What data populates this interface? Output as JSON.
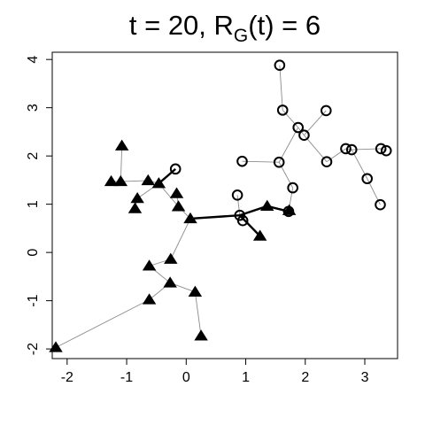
{
  "chart_data": {
    "type": "scatter",
    "title": {
      "prefix": "t = 20, R",
      "subscript": "G",
      "suffix": "(t) = 6"
    },
    "xlabel": "",
    "ylabel": "",
    "xlim": [
      -2.25,
      3.55
    ],
    "ylim": [
      -2.2,
      4.15
    ],
    "x_ticks": [
      -2,
      -1,
      0,
      1,
      2,
      3
    ],
    "y_ticks": [
      -2,
      -1,
      0,
      1,
      2,
      3,
      4
    ],
    "grid": false,
    "legend": null,
    "colors": {
      "edge_thin": "#8c8c8c",
      "edge_bold": "#000000",
      "points": "#000000"
    },
    "nodes": [
      {
        "id": "c1",
        "shape": "circle",
        "x": 1.57,
        "y": 3.88
      },
      {
        "id": "c2",
        "shape": "circle",
        "x": 1.62,
        "y": 2.95
      },
      {
        "id": "c3",
        "shape": "circle",
        "x": 2.35,
        "y": 2.94
      },
      {
        "id": "c4",
        "shape": "circle",
        "x": 1.88,
        "y": 2.59
      },
      {
        "id": "c5",
        "shape": "circle",
        "x": 1.98,
        "y": 2.43
      },
      {
        "id": "c6",
        "shape": "circle",
        "x": 2.68,
        "y": 2.15
      },
      {
        "id": "c7",
        "shape": "circle",
        "x": 2.78,
        "y": 2.13
      },
      {
        "id": "c8",
        "shape": "circle",
        "x": 3.27,
        "y": 2.15
      },
      {
        "id": "c9",
        "shape": "circle",
        "x": 3.36,
        "y": 2.11
      },
      {
        "id": "c10",
        "shape": "circle",
        "x": 0.94,
        "y": 1.89
      },
      {
        "id": "c11",
        "shape": "circle",
        "x": 1.56,
        "y": 1.87
      },
      {
        "id": "c12",
        "shape": "circle",
        "x": 2.36,
        "y": 1.88
      },
      {
        "id": "c13",
        "shape": "circle",
        "x": -0.18,
        "y": 1.73
      },
      {
        "id": "c14",
        "shape": "circle",
        "x": 3.04,
        "y": 1.53
      },
      {
        "id": "c15",
        "shape": "circle",
        "x": 1.79,
        "y": 1.34
      },
      {
        "id": "c16",
        "shape": "circle",
        "x": 0.86,
        "y": 1.19
      },
      {
        "id": "c17",
        "shape": "circle",
        "x": 3.26,
        "y": 0.99
      },
      {
        "id": "c18",
        "shape": "circle",
        "x": 1.72,
        "y": 0.85
      },
      {
        "id": "c19",
        "shape": "circle",
        "x": 0.9,
        "y": 0.77
      },
      {
        "id": "c20",
        "shape": "circle",
        "x": 0.95,
        "y": 0.66
      },
      {
        "id": "t1",
        "shape": "triangle",
        "x": -1.08,
        "y": 2.21
      },
      {
        "id": "t2",
        "shape": "triangle",
        "x": -1.26,
        "y": 1.47
      },
      {
        "id": "t3",
        "shape": "triangle",
        "x": -1.1,
        "y": 1.47
      },
      {
        "id": "t4",
        "shape": "triangle",
        "x": -0.64,
        "y": 1.49
      },
      {
        "id": "t5",
        "shape": "triangle",
        "x": -0.46,
        "y": 1.43
      },
      {
        "id": "t6",
        "shape": "triangle",
        "x": -0.16,
        "y": 1.22
      },
      {
        "id": "t7",
        "shape": "triangle",
        "x": -0.82,
        "y": 1.12
      },
      {
        "id": "t8",
        "shape": "triangle",
        "x": -0.86,
        "y": 0.91
      },
      {
        "id": "t9",
        "shape": "triangle",
        "x": -0.13,
        "y": 0.95
      },
      {
        "id": "t10",
        "shape": "triangle",
        "x": 0.07,
        "y": 0.7
      },
      {
        "id": "t11",
        "shape": "triangle",
        "x": 1.36,
        "y": 0.96
      },
      {
        "id": "t12",
        "shape": "triangle",
        "x": 1.73,
        "y": 0.87
      },
      {
        "id": "t13",
        "shape": "triangle",
        "x": 1.24,
        "y": 0.34
      },
      {
        "id": "t14",
        "shape": "triangle",
        "x": -0.26,
        "y": -0.14
      },
      {
        "id": "t15",
        "shape": "triangle",
        "x": -0.62,
        "y": -0.28
      },
      {
        "id": "t16",
        "shape": "triangle",
        "x": -0.27,
        "y": -0.63
      },
      {
        "id": "t17",
        "shape": "triangle",
        "x": 0.15,
        "y": -0.82
      },
      {
        "id": "t18",
        "shape": "triangle",
        "x": -0.62,
        "y": -0.98
      },
      {
        "id": "t19",
        "shape": "triangle",
        "x": 0.25,
        "y": -1.73
      },
      {
        "id": "t20",
        "shape": "triangle",
        "x": -2.19,
        "y": -1.97
      }
    ],
    "edges_thin": [
      [
        "c1",
        "c2"
      ],
      [
        "c2",
        "c4"
      ],
      [
        "c4",
        "c5"
      ],
      [
        "c4",
        "c11"
      ],
      [
        "c5",
        "c3"
      ],
      [
        "c5",
        "c12"
      ],
      [
        "c12",
        "c6"
      ],
      [
        "c6",
        "c7"
      ],
      [
        "c7",
        "c8"
      ],
      [
        "c8",
        "c9"
      ],
      [
        "c7",
        "c14"
      ],
      [
        "c14",
        "c17"
      ],
      [
        "c10",
        "c11"
      ],
      [
        "c11",
        "c15"
      ],
      [
        "c15",
        "c18"
      ],
      [
        "c16",
        "c19"
      ],
      [
        "c19",
        "c20"
      ],
      [
        "t1",
        "t3"
      ],
      [
        "t2",
        "t3"
      ],
      [
        "t3",
        "t4"
      ],
      [
        "t4",
        "t5"
      ],
      [
        "t7",
        "t8"
      ],
      [
        "t7",
        "t5"
      ],
      [
        "t6",
        "t9"
      ],
      [
        "t5",
        "t9"
      ],
      [
        "t9",
        "t10"
      ],
      [
        "t10",
        "t14"
      ],
      [
        "t14",
        "t15"
      ],
      [
        "t15",
        "t16"
      ],
      [
        "t16",
        "t17"
      ],
      [
        "t16",
        "t18"
      ],
      [
        "t18",
        "t20"
      ],
      [
        "t17",
        "t19"
      ]
    ],
    "edges_bold": [
      [
        "t5",
        "c13"
      ],
      [
        "t10",
        "c19"
      ],
      [
        "c19",
        "t11"
      ],
      [
        "t11",
        "c18"
      ],
      [
        "c19",
        "t13"
      ]
    ]
  }
}
